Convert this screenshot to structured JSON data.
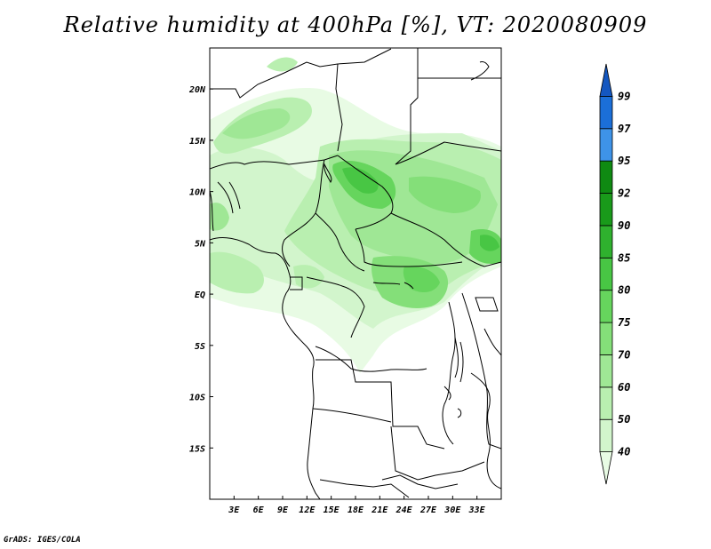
{
  "title": "Relative humidity at 400hPa [%], VT: 2020080909",
  "footer": "GrADS: IGES/COLA",
  "map": {
    "lon_range": [
      0,
      36
    ],
    "lat_range": [
      -20,
      24
    ],
    "x_ticks": [
      "3E",
      "6E",
      "9E",
      "12E",
      "15E",
      "18E",
      "21E",
      "24E",
      "27E",
      "30E",
      "33E"
    ],
    "y_ticks": [
      "20N",
      "15N",
      "10N",
      "5N",
      "EQ",
      "5S",
      "10S",
      "15S"
    ]
  },
  "colorbar": {
    "levels": [
      "40",
      "50",
      "60",
      "70",
      "75",
      "80",
      "85",
      "90",
      "92",
      "95",
      "97",
      "99"
    ],
    "colors": [
      "#e8fbe4",
      "#d2f5cc",
      "#b9efb0",
      "#9fe795",
      "#84df79",
      "#66d55d",
      "#48c644",
      "#2fb12e",
      "#199a1a",
      "#0f8a12",
      "#3e93e8",
      "#1b6fd8",
      "#1457c0"
    ]
  }
}
